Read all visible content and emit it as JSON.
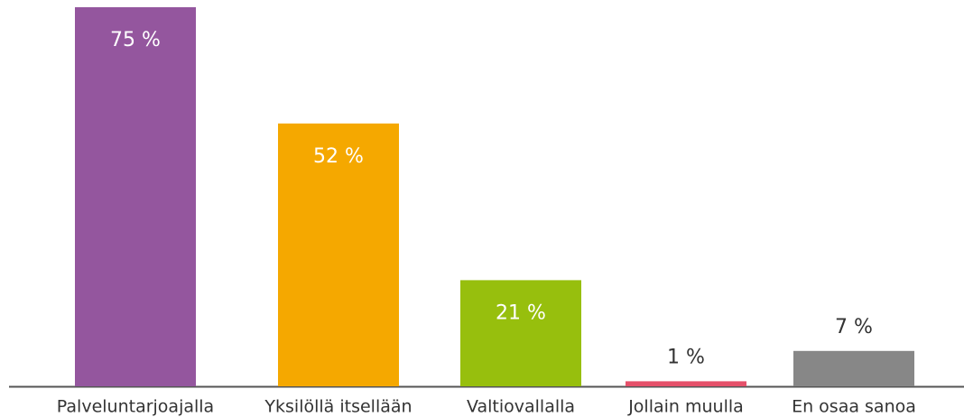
{
  "chart_data": {
    "type": "bar",
    "categories": [
      "Palveluntarjoajalla",
      "Yksilöllä itsellään",
      "Valtiovallalla",
      "Jollain muulla",
      "En osaa sanoa"
    ],
    "values": [
      75,
      52,
      21,
      1,
      7
    ],
    "value_labels": [
      "75 %",
      "52 %",
      "21 %",
      "1 %",
      "7 %"
    ],
    "colors": [
      "#94569e",
      "#f5a800",
      "#97bf0d",
      "#e5506a",
      "#878787"
    ]
  }
}
